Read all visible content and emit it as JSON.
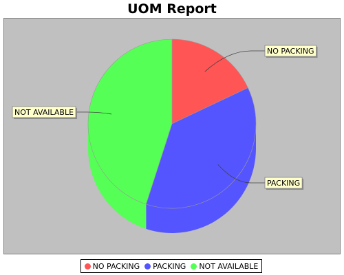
{
  "chart_data": {
    "type": "pie",
    "title": "UOM Report",
    "slices": [
      {
        "label": "NO PACKING",
        "value": 18,
        "color": "#ff5555"
      },
      {
        "label": "PACKING",
        "value": 37,
        "color": "#5555ff"
      },
      {
        "label": "NOT AVAILABLE",
        "value": 45,
        "color": "#55ff55"
      }
    ],
    "legend_position": "bottom",
    "three_d": true
  }
}
